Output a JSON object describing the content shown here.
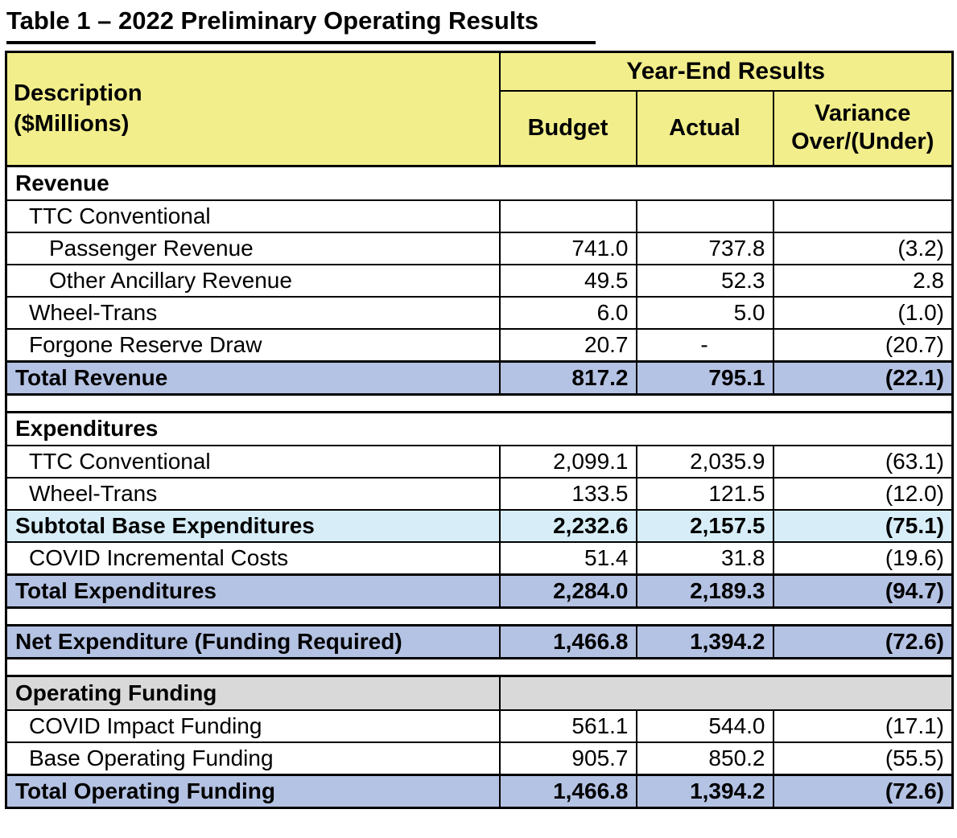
{
  "title": "Table 1 – 2022 Preliminary Operating Results",
  "table": {
    "header": {
      "description_line1": "Description",
      "description_line2": "($Millions)",
      "group_label": "Year-End Results",
      "columns": [
        "Budget",
        "Actual",
        "Variance Over/(Under)"
      ]
    },
    "rows": [
      {
        "label": "Revenue"
      },
      {
        "label": "TTC Conventional",
        "budget": "",
        "actual": "",
        "variance": ""
      },
      {
        "label": "Passenger Revenue",
        "budget": "741.0",
        "actual": "737.8",
        "variance": "(3.2)"
      },
      {
        "label": "Other Ancillary Revenue",
        "budget": "49.5",
        "actual": "52.3",
        "variance": "2.8"
      },
      {
        "label": "Wheel-Trans",
        "budget": "6.0",
        "actual": "5.0",
        "variance": "(1.0)"
      },
      {
        "label": "Forgone Reserve Draw",
        "budget": "20.7",
        "actual": "-",
        "variance": "(20.7)"
      },
      {
        "label": "Total Revenue",
        "budget": "817.2",
        "actual": "795.1",
        "variance": "(22.1)"
      },
      {
        "label": "Expenditures"
      },
      {
        "label": "TTC Conventional",
        "budget": "2,099.1",
        "actual": "2,035.9",
        "variance": "(63.1)"
      },
      {
        "label": "Wheel-Trans",
        "budget": "133.5",
        "actual": "121.5",
        "variance": "(12.0)"
      },
      {
        "label": "Subtotal Base Expenditures",
        "budget": "2,232.6",
        "actual": "2,157.5",
        "variance": "(75.1)"
      },
      {
        "label": "COVID Incremental Costs",
        "budget": "51.4",
        "actual": "31.8",
        "variance": "(19.6)"
      },
      {
        "label": "Total Expenditures",
        "budget": "2,284.0",
        "actual": "2,189.3",
        "variance": "(94.7)"
      },
      {
        "label": "Net Expenditure (Funding Required)",
        "budget": "1,466.8",
        "actual": "1,394.2",
        "variance": "(72.6)"
      },
      {
        "label": "Operating Funding"
      },
      {
        "label": "COVID Impact Funding",
        "budget": "561.1",
        "actual": "544.0",
        "variance": "(17.1)"
      },
      {
        "label": "Base Operating Funding",
        "budget": "905.7",
        "actual": "850.2",
        "variance": "(55.5)"
      },
      {
        "label": "Total Operating Funding",
        "budget": "1,466.8",
        "actual": "1,394.2",
        "variance": "(72.6)"
      }
    ]
  },
  "colors": {
    "header_yellow": "#f2ee8b",
    "total_blue": "#b4c2e3",
    "subtotal_cyan": "#d7eef8",
    "section_gray": "#d9d9d9",
    "border_color": "#000000"
  }
}
